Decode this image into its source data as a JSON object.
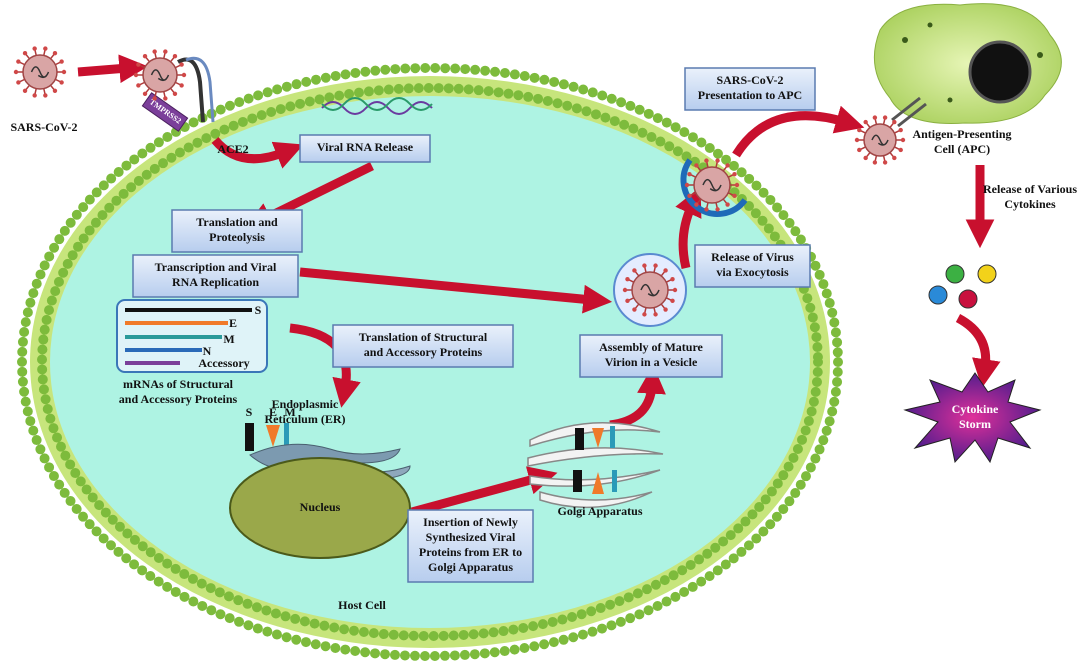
{
  "virus_label": "SARS-CoV-2",
  "tmprss2_label": "TMPRSS2",
  "ace2_label": "ACE2",
  "steps": [
    {
      "lines": [
        "Viral RNA Release"
      ]
    },
    {
      "lines": [
        "Translation and",
        "Proteolysis"
      ]
    },
    {
      "lines": [
        "Transcription and Viral",
        "RNA Replication"
      ]
    },
    {
      "lines": [
        "Translation of Structural",
        "and Accessory Proteins"
      ]
    },
    {
      "lines": [
        "Insertion of Newly",
        "Synthesized Viral",
        "Proteins from ER to",
        "Golgi Apparatus"
      ]
    },
    {
      "lines": [
        "Assembly of Mature",
        "Virion in a Vesicle"
      ]
    },
    {
      "lines": [
        "Release of Virus",
        "via Exocytosis"
      ]
    },
    {
      "lines": [
        "SARS-CoV-2",
        "Presentation to APC"
      ]
    }
  ],
  "mrna": {
    "bands": [
      "S",
      "E",
      "M",
      "N",
      "Accessory"
    ],
    "caption": [
      "mRNAs of Structural",
      "and Accessory Proteins"
    ]
  },
  "er": {
    "label": [
      "Endoplasmic",
      "Reticulum (ER)"
    ],
    "proteins": [
      "S",
      "E",
      "M"
    ]
  },
  "nucleus_label": "Nucleus",
  "golgi_label": "Golgi Apparatus",
  "host_cell_label": "Host Cell",
  "apc_label": [
    "Antigen-Presenting",
    "Cell (APC)"
  ],
  "cytokine_release_label": [
    "Release of Various",
    "Cytokines"
  ],
  "cytokine_storm_label": [
    "Cytokine",
    "Storm"
  ]
}
